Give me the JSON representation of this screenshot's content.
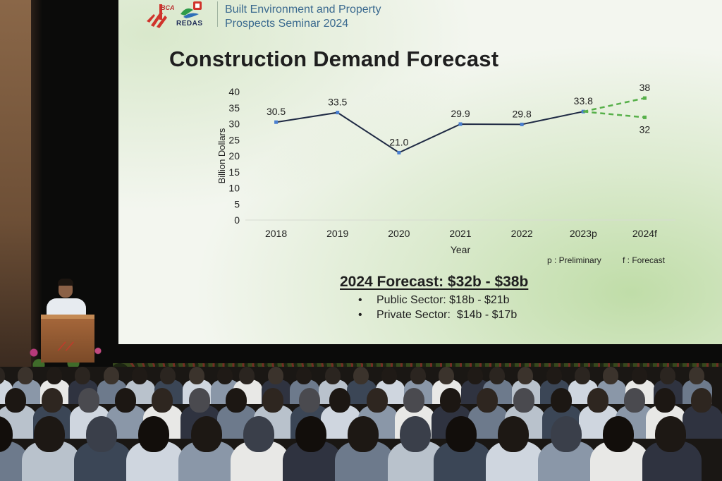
{
  "header": {
    "logo_bca_text": "BCA",
    "logo_redas_text": "REDAS",
    "title": "Built Environment and Property\nProspects Seminar 2024"
  },
  "chart_data": {
    "type": "line",
    "title": "Construction Demand Forecast",
    "xlabel": "Year",
    "ylabel": "Billion Dollars",
    "categories": [
      "2018",
      "2019",
      "2020",
      "2021",
      "2022",
      "2023p",
      "2024f"
    ],
    "ylim": [
      0,
      40
    ],
    "yticks": [
      0,
      5,
      10,
      15,
      20,
      25,
      30,
      35,
      40
    ],
    "grid": false,
    "series": [
      {
        "values": [
          30.5,
          33.5,
          21.0,
          29.9,
          29.8,
          33.8,
          null
        ],
        "labels": [
          "30.5",
          "33.5",
          "21.0",
          "29.9",
          "29.8",
          "33.8",
          ""
        ],
        "style": "solid",
        "color": "#1f2a44",
        "marker_color": "#4a7fd0"
      },
      {
        "values": [
          null,
          null,
          null,
          null,
          null,
          33.8,
          38
        ],
        "labels": [
          "",
          "",
          "",
          "",
          "",
          "",
          "38"
        ],
        "style": "dashed",
        "color": "#57b04a"
      },
      {
        "values": [
          null,
          null,
          null,
          null,
          null,
          33.8,
          32
        ],
        "labels": [
          "",
          "",
          "",
          "",
          "",
          "",
          "32"
        ],
        "style": "dashed",
        "color": "#57b04a"
      }
    ],
    "notes": [
      "p : Preliminary",
      "f : Forecast"
    ]
  },
  "forecast": {
    "title": "2024 Forecast: $32b - $38b",
    "items": [
      {
        "bullet": "•",
        "text": "Public Sector: $18b - $21b"
      },
      {
        "bullet": "•",
        "text": "Private Sector:  $14b - $17b"
      }
    ]
  },
  "colors": {
    "screen_bg": "#f3f6ef",
    "title_text": "#1f1f1f",
    "header_text": "#3b6a8f",
    "line": "#1f2a44",
    "forecast_line": "#57b04a",
    "marker": "#4a7fd0"
  }
}
